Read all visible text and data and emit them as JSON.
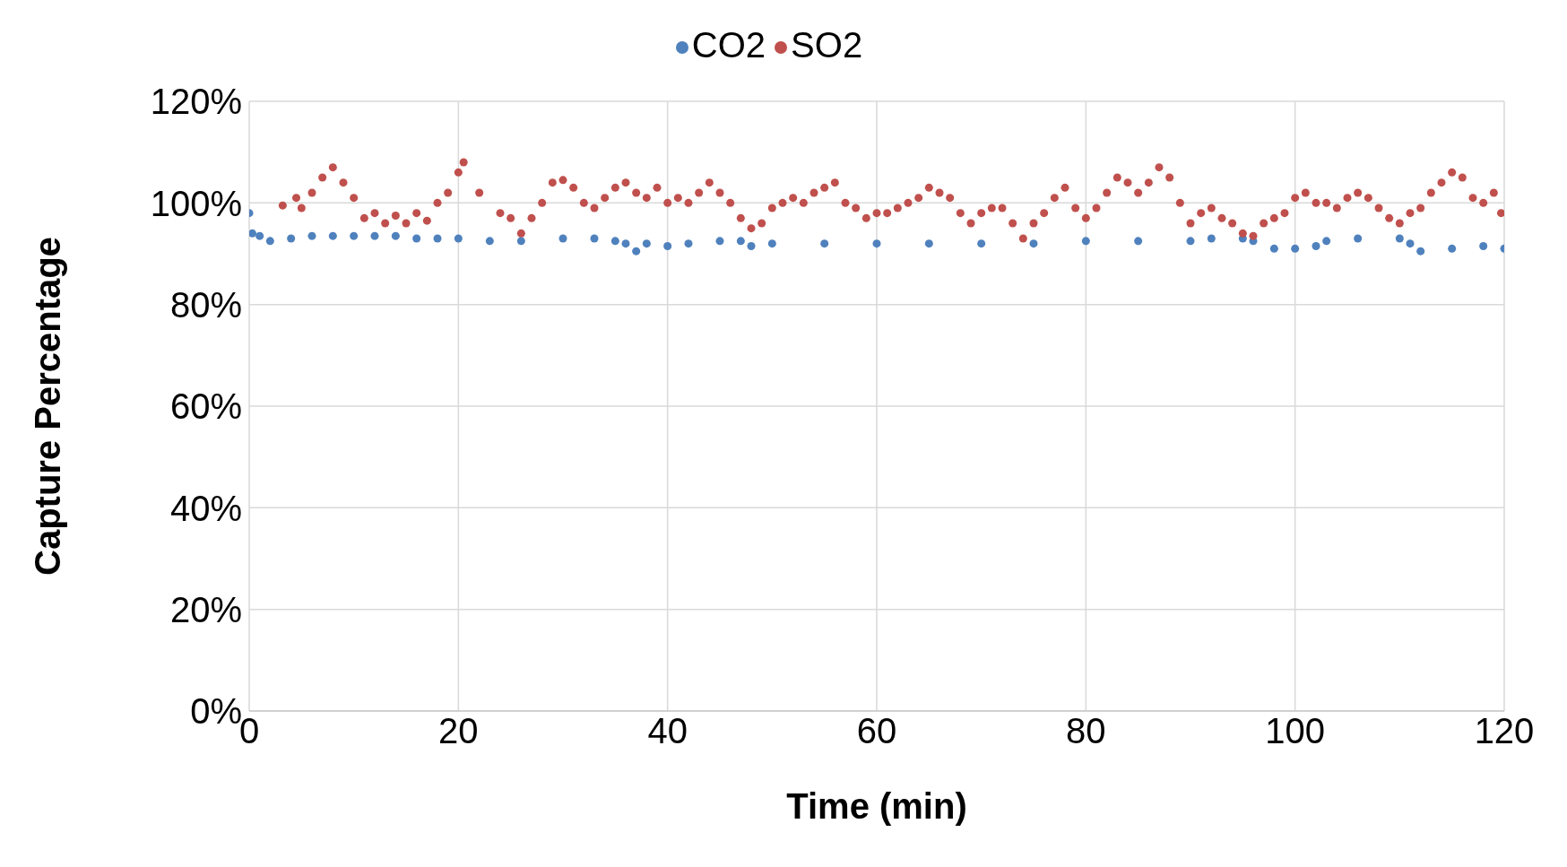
{
  "chart_data": {
    "type": "scatter",
    "xlabel": "Time (min)",
    "ylabel": "Capture Percentage",
    "xlim": [
      0,
      120
    ],
    "xticks": [
      0,
      20,
      40,
      60,
      80,
      100,
      120
    ],
    "ylim": [
      0,
      120
    ],
    "yticks": [
      {
        "value": 0,
        "label": "0%"
      },
      {
        "value": 20,
        "label": "20%"
      },
      {
        "value": 40,
        "label": "40%"
      },
      {
        "value": 60,
        "label": "60%"
      },
      {
        "value": 80,
        "label": "80%"
      },
      {
        "value": 100,
        "label": "100%"
      },
      {
        "value": 120,
        "label": "120%"
      }
    ],
    "grid": true,
    "legend": "top",
    "marker": "circle",
    "series": [
      {
        "name": "CO2",
        "color": "#4f81bd",
        "x": [
          0,
          0.3,
          1,
          2,
          4,
          6,
          8,
          10,
          12,
          14,
          16,
          18,
          20,
          23,
          26,
          30,
          33,
          35,
          36,
          37,
          38,
          40,
          42,
          45,
          47,
          48,
          50,
          55,
          60,
          65,
          70,
          75,
          80,
          85,
          90,
          92,
          95,
          96,
          98,
          100,
          102,
          103,
          106,
          110,
          111,
          112,
          115,
          118,
          120
        ],
        "values": [
          98,
          94,
          93.5,
          92.5,
          93,
          93.5,
          93.5,
          93.5,
          93.5,
          93.5,
          93,
          93,
          93,
          92.5,
          92.5,
          93,
          93,
          92.5,
          92,
          90.5,
          92,
          91.5,
          92,
          92.5,
          92.5,
          91.5,
          92,
          92,
          92,
          92,
          92,
          92,
          92.5,
          92.5,
          92.5,
          93,
          93,
          92.5,
          91,
          91,
          91.5,
          92.5,
          93,
          93,
          92,
          90.5,
          91,
          91.5,
          91
        ]
      },
      {
        "name": "SO2",
        "color": "#c0504d",
        "x": [
          3.2,
          4.5,
          5,
          6,
          7,
          8,
          9,
          10,
          11,
          12,
          13,
          14,
          15,
          16,
          17,
          18,
          19,
          20,
          20.5,
          22,
          24,
          25,
          26,
          27,
          28,
          29,
          30,
          31,
          32,
          33,
          34,
          35,
          36,
          37,
          38,
          39,
          40,
          41,
          42,
          43,
          44,
          45,
          46,
          47,
          48,
          49,
          50,
          51,
          52,
          53,
          54,
          55,
          56,
          57,
          58,
          59,
          60,
          61,
          62,
          63,
          64,
          65,
          66,
          67,
          68,
          69,
          70,
          71,
          72,
          73,
          74,
          75,
          76,
          77,
          78,
          79,
          80,
          81,
          82,
          83,
          84,
          85,
          86,
          87,
          88,
          89,
          90,
          91,
          92,
          93,
          94,
          95,
          96,
          97,
          98,
          99,
          100,
          101,
          102,
          103,
          104,
          105,
          106,
          107,
          108,
          109,
          110,
          111,
          112,
          113,
          114,
          115,
          116,
          117,
          118,
          119,
          119.7
        ],
        "values": [
          99.5,
          101,
          99,
          102,
          105,
          107,
          104,
          101,
          97,
          98,
          96,
          97.5,
          96,
          98,
          96.5,
          100,
          102,
          106,
          108,
          102,
          98,
          97,
          94,
          97,
          100,
          104,
          104.5,
          103,
          100,
          99,
          101,
          103,
          104,
          102,
          101,
          103,
          100,
          101,
          100,
          102,
          104,
          102,
          100,
          97,
          95,
          96,
          99,
          100,
          101,
          100,
          102,
          103,
          104,
          100,
          99,
          97,
          98,
          98,
          99,
          100,
          101,
          103,
          102,
          101,
          98,
          96,
          98,
          99,
          99,
          96,
          93,
          96,
          98,
          101,
          103,
          99,
          97,
          99,
          102,
          105,
          104,
          102,
          104,
          107,
          105,
          100,
          96,
          98,
          99,
          97,
          96,
          94,
          93.5,
          96,
          97,
          98,
          101,
          102,
          100,
          100,
          99,
          101,
          102,
          101,
          99,
          97,
          96,
          98,
          99,
          102,
          104,
          106,
          105,
          101,
          100,
          102,
          98
        ]
      }
    ]
  }
}
